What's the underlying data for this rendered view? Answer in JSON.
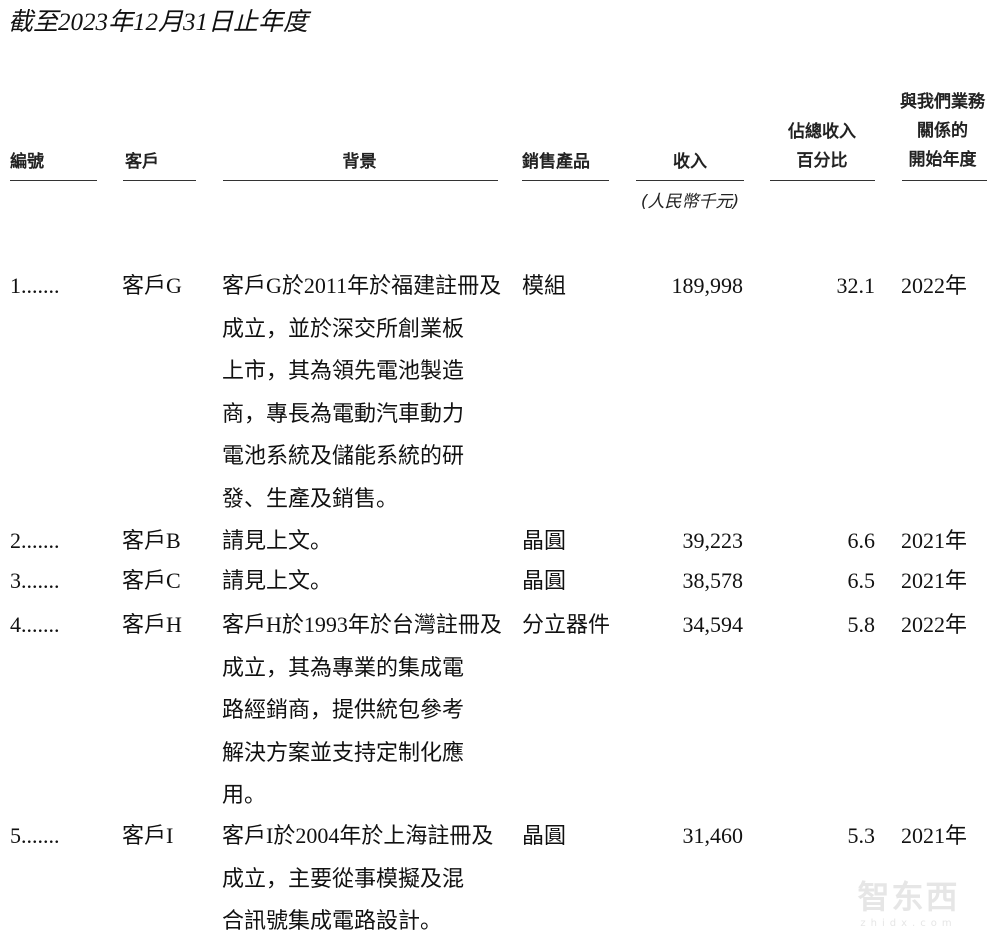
{
  "title": "截至2023年12月31日止年度",
  "headers": {
    "no": "編號",
    "customer": "客戶",
    "background": "背景",
    "product": "銷售產品",
    "revenue": "收入",
    "revenue_unit": "(人民幣千元)",
    "pct_line1": "佔總收入",
    "pct_line2": "百分比",
    "start_line1": "與我們業務",
    "start_line2": "關係的",
    "start_line3": "開始年度"
  },
  "rows": [
    {
      "no": "1.......",
      "customer": "客戶G",
      "bg": [
        "客戶G於2011年於福建註冊及",
        "成立，並於深交所創業板",
        "上市，其為領先電池製造",
        "商，專長為電動汽車動力",
        "電池系統及儲能系統的研",
        "發、生產及銷售。"
      ],
      "product": "模組",
      "revenue": "189,998",
      "pct": "32.1",
      "year": "2022年"
    },
    {
      "no": "2.......",
      "customer": "客戶B",
      "bg": [
        "請見上文。"
      ],
      "product": "晶圓",
      "revenue": "39,223",
      "pct": "6.6",
      "year": "2021年"
    },
    {
      "no": "3.......",
      "customer": "客戶C",
      "bg": [
        "請見上文。"
      ],
      "product": "晶圓",
      "revenue": "38,578",
      "pct": "6.5",
      "year": "2021年"
    },
    {
      "no": "4.......",
      "customer": "客戶H",
      "bg": [
        "客戶H於1993年於台灣註冊及",
        "成立，其為專業的集成電",
        "路經銷商，提供統包參考",
        "解決方案並支持定制化應",
        "用。"
      ],
      "product": "分立器件",
      "revenue": "34,594",
      "pct": "5.8",
      "year": "2022年"
    },
    {
      "no": "5.......",
      "customer": "客戶I",
      "bg": [
        "客戶I於2004年於上海註冊及",
        "成立，主要從事模擬及混",
        "合訊號集成電路設計。"
      ],
      "product": "晶圓",
      "revenue": "31,460",
      "pct": "5.3",
      "year": "2021年"
    }
  ],
  "watermark": {
    "text": "智东西",
    "sub": "zhidx.com"
  }
}
